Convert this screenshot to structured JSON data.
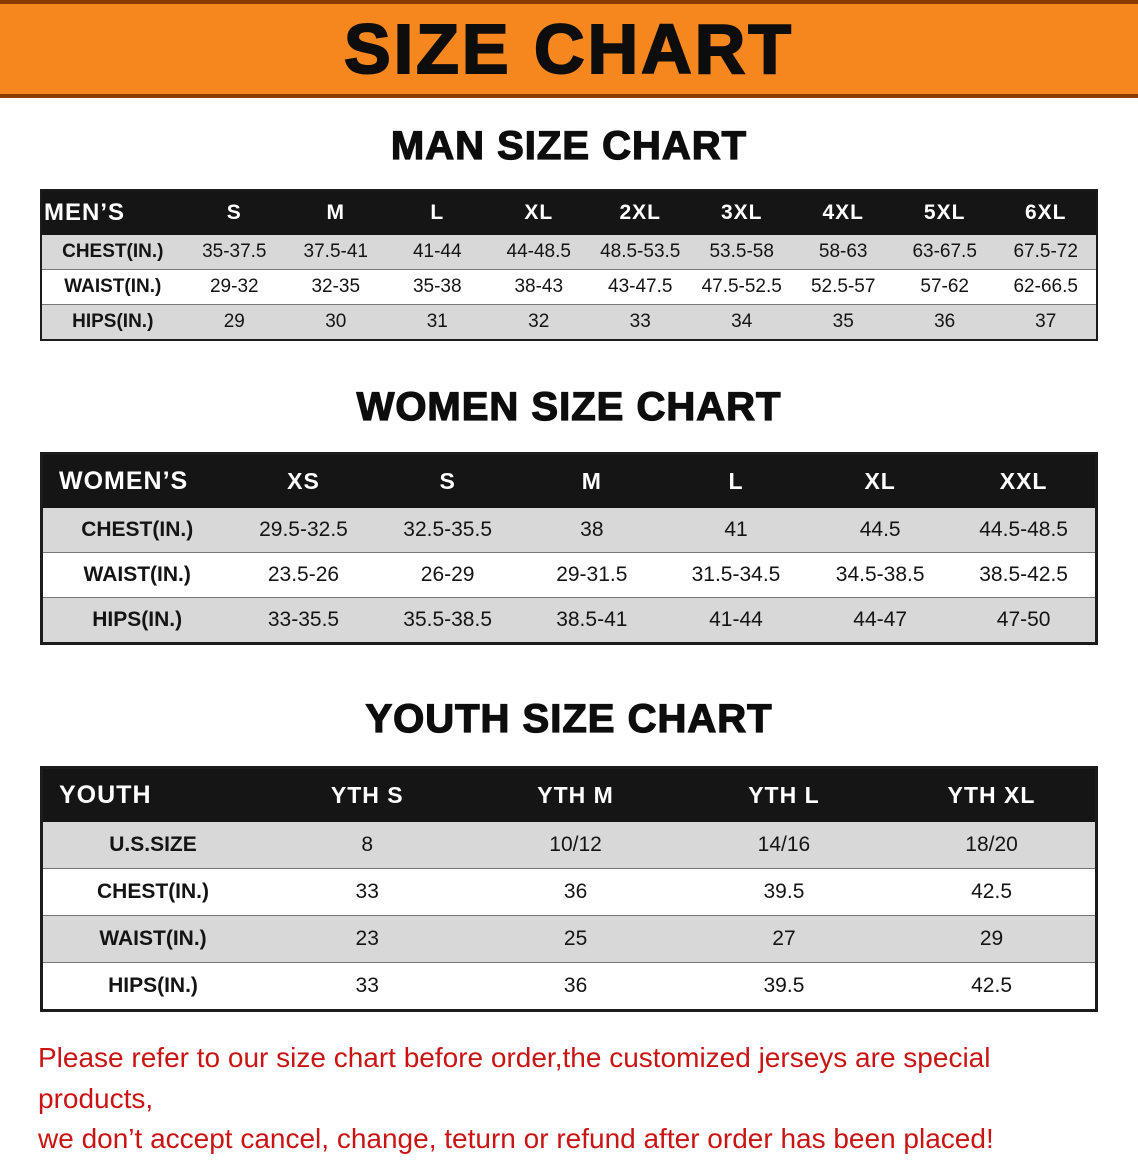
{
  "banner": {
    "title": "SIZE CHART"
  },
  "colors": {
    "banner_bg": "#f6861e",
    "banner_border": "#8a3c00",
    "table_header_bg": "#151515",
    "table_header_text": "#ffffff",
    "row_stripe": "#d8d8d8",
    "disclaimer_text": "#c91414"
  },
  "sections": [
    {
      "heading": "MAN SIZE CHART",
      "table": {
        "header": [
          "MEN’S",
          "S",
          "M",
          "L",
          "XL",
          "2XL",
          "3XL",
          "4XL",
          "5XL",
          "6XL"
        ],
        "rows": [
          [
            "CHEST(IN.)",
            "35-37.5",
            "37.5-41",
            "41-44",
            "44-48.5",
            "48.5-53.5",
            "53.5-58",
            "58-63",
            "63-67.5",
            "67.5-72"
          ],
          [
            "WAIST(IN.)",
            "29-32",
            "32-35",
            "35-38",
            "38-43",
            "43-47.5",
            "47.5-52.5",
            "52.5-57",
            "57-62",
            "62-66.5"
          ],
          [
            "HIPS(IN.)",
            "29",
            "30",
            "31",
            "32",
            "33",
            "34",
            "35",
            "36",
            "37"
          ]
        ]
      }
    },
    {
      "heading": "WOMEN SIZE CHART",
      "table": {
        "header": [
          "WOMEN’S",
          "XS",
          "S",
          "M",
          "L",
          "XL",
          "XXL"
        ],
        "rows": [
          [
            "CHEST(IN.)",
            "29.5-32.5",
            "32.5-35.5",
            "38",
            "41",
            "44.5",
            "44.5-48.5"
          ],
          [
            "WAIST(IN.)",
            "23.5-26",
            "26-29",
            "29-31.5",
            "31.5-34.5",
            "34.5-38.5",
            "38.5-42.5"
          ],
          [
            "HIPS(IN.)",
            "33-35.5",
            "35.5-38.5",
            "38.5-41",
            "41-44",
            "44-47",
            "47-50"
          ]
        ]
      }
    },
    {
      "heading": "YOUTH SIZE CHART",
      "table": {
        "header": [
          "YOUTH",
          "YTH S",
          "YTH M",
          "YTH L",
          "YTH XL"
        ],
        "rows": [
          [
            "U.S.SIZE",
            "8",
            "10/12",
            "14/16",
            "18/20"
          ],
          [
            "CHEST(IN.)",
            "33",
            "36",
            "39.5",
            "42.5"
          ],
          [
            "WAIST(IN.)",
            "23",
            "25",
            "27",
            "29"
          ],
          [
            "HIPS(IN.)",
            "33",
            "36",
            "39.5",
            "42.5"
          ]
        ]
      }
    }
  ],
  "footer": {
    "line1": "Please refer to our size chart before order,the customized jerseys are special products,",
    "line2": "we don’t accept cancel, change, teturn or refund after order has been placed!"
  }
}
